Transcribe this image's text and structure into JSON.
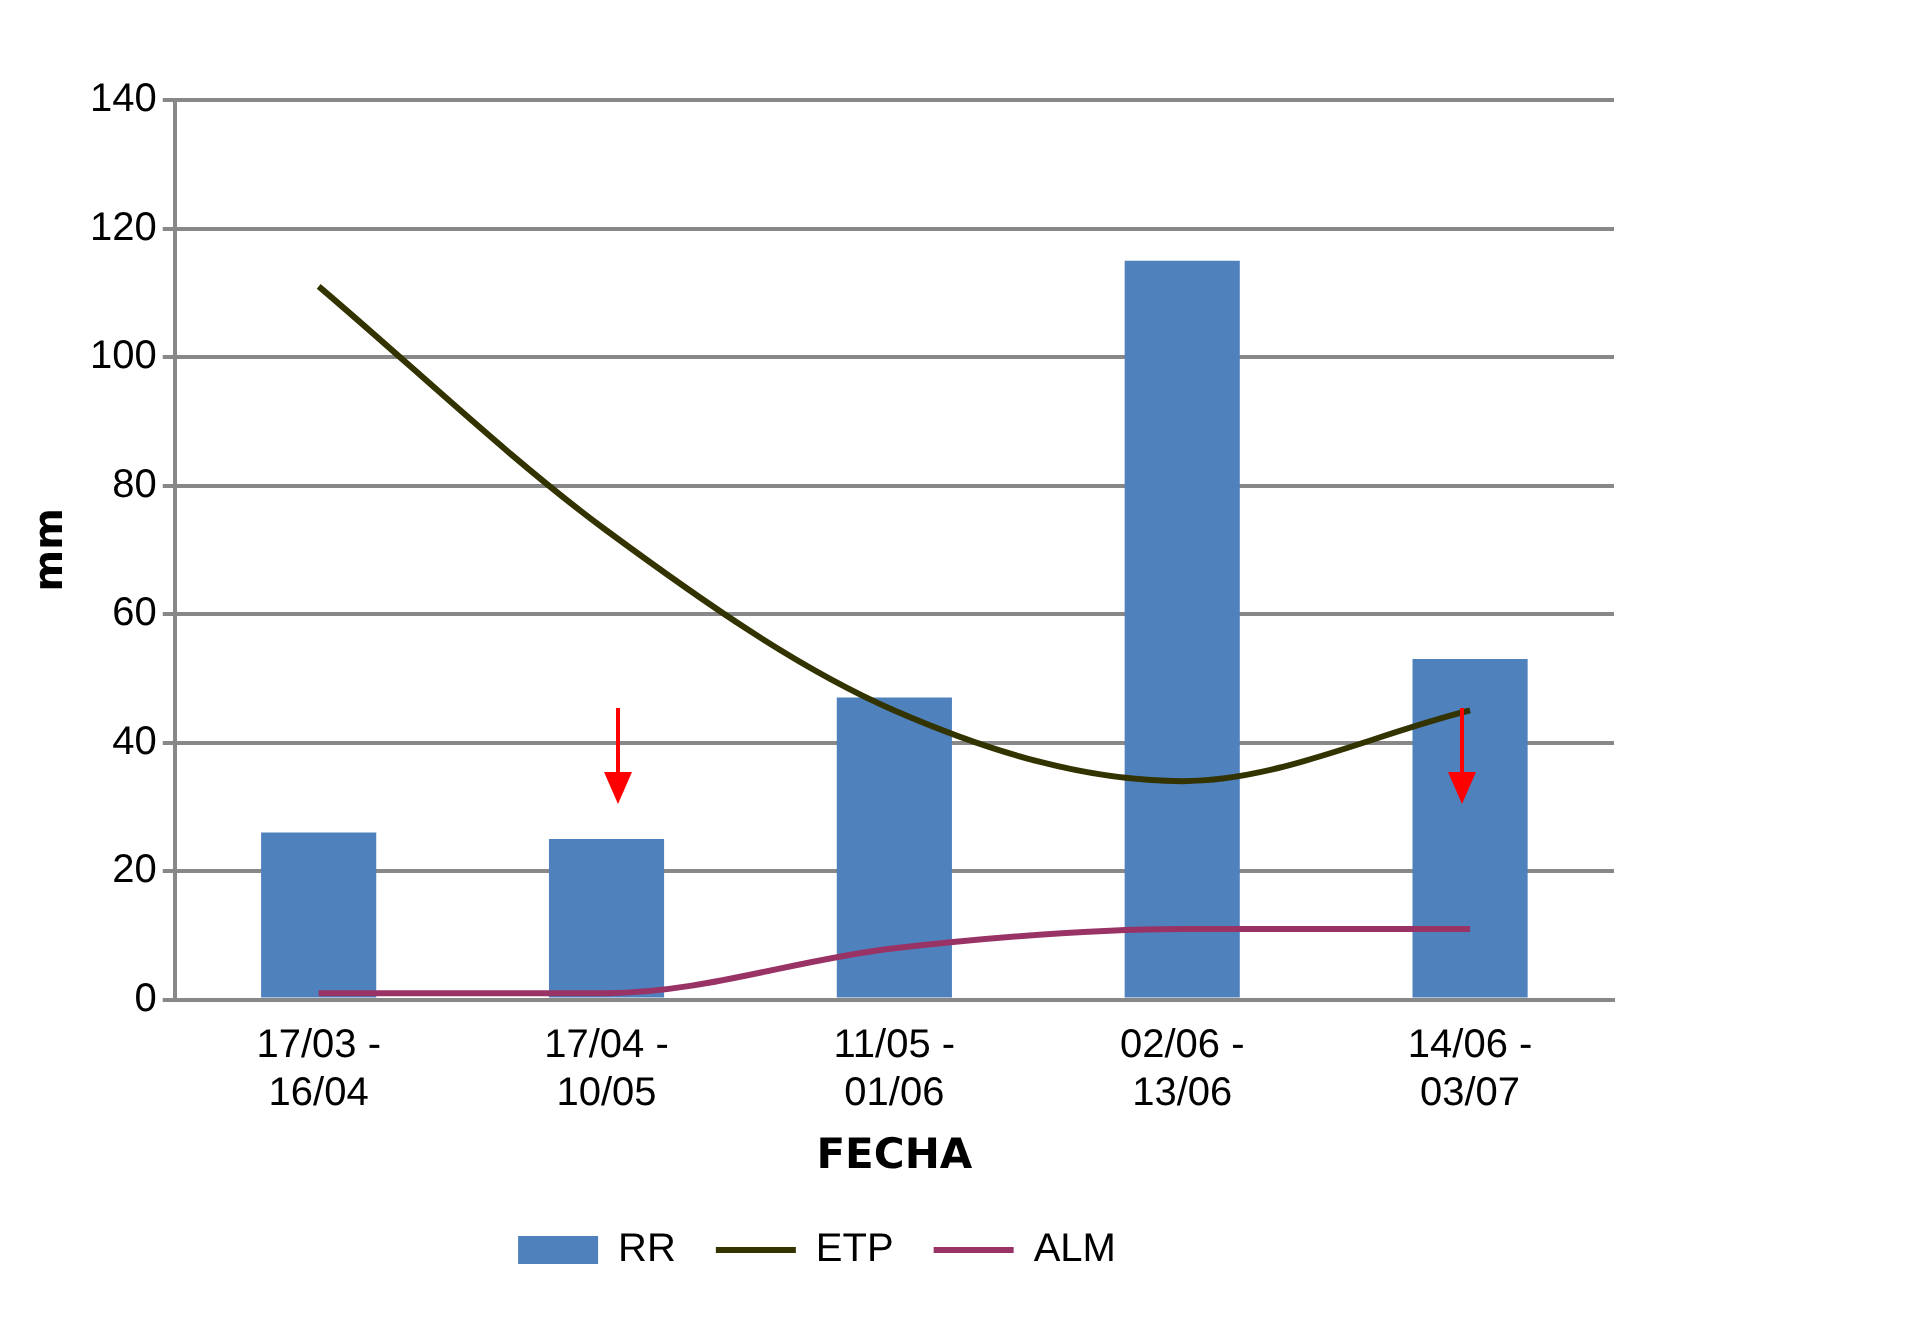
{
  "chart_data": {
    "type": "bar",
    "xlabel": "FECHA",
    "ylabel": "mm",
    "categories": [
      "17/03 -\n16/04",
      "17/04 -\n10/05",
      "11/05 -\n01/06",
      "02/06 -\n13/06",
      "14/06 -\n03/07"
    ],
    "series": [
      {
        "name": "RR",
        "color": "#4f81bd",
        "values": [
          26,
          25,
          47,
          115,
          53
        ]
      },
      {
        "name": "ETP",
        "type": "line",
        "color": "#333300",
        "values": [
          111,
          73,
          45,
          34,
          45
        ]
      },
      {
        "name": "ALM",
        "type": "line",
        "color": "#993366",
        "values": [
          1,
          1,
          8,
          11,
          11
        ]
      }
    ],
    "ylim": [
      0,
      140
    ],
    "yticks": [
      0,
      20,
      40,
      60,
      80,
      100,
      120,
      140
    ],
    "grid": "y",
    "legend": "bottom",
    "marker": "none",
    "line_style": "solid"
  }
}
